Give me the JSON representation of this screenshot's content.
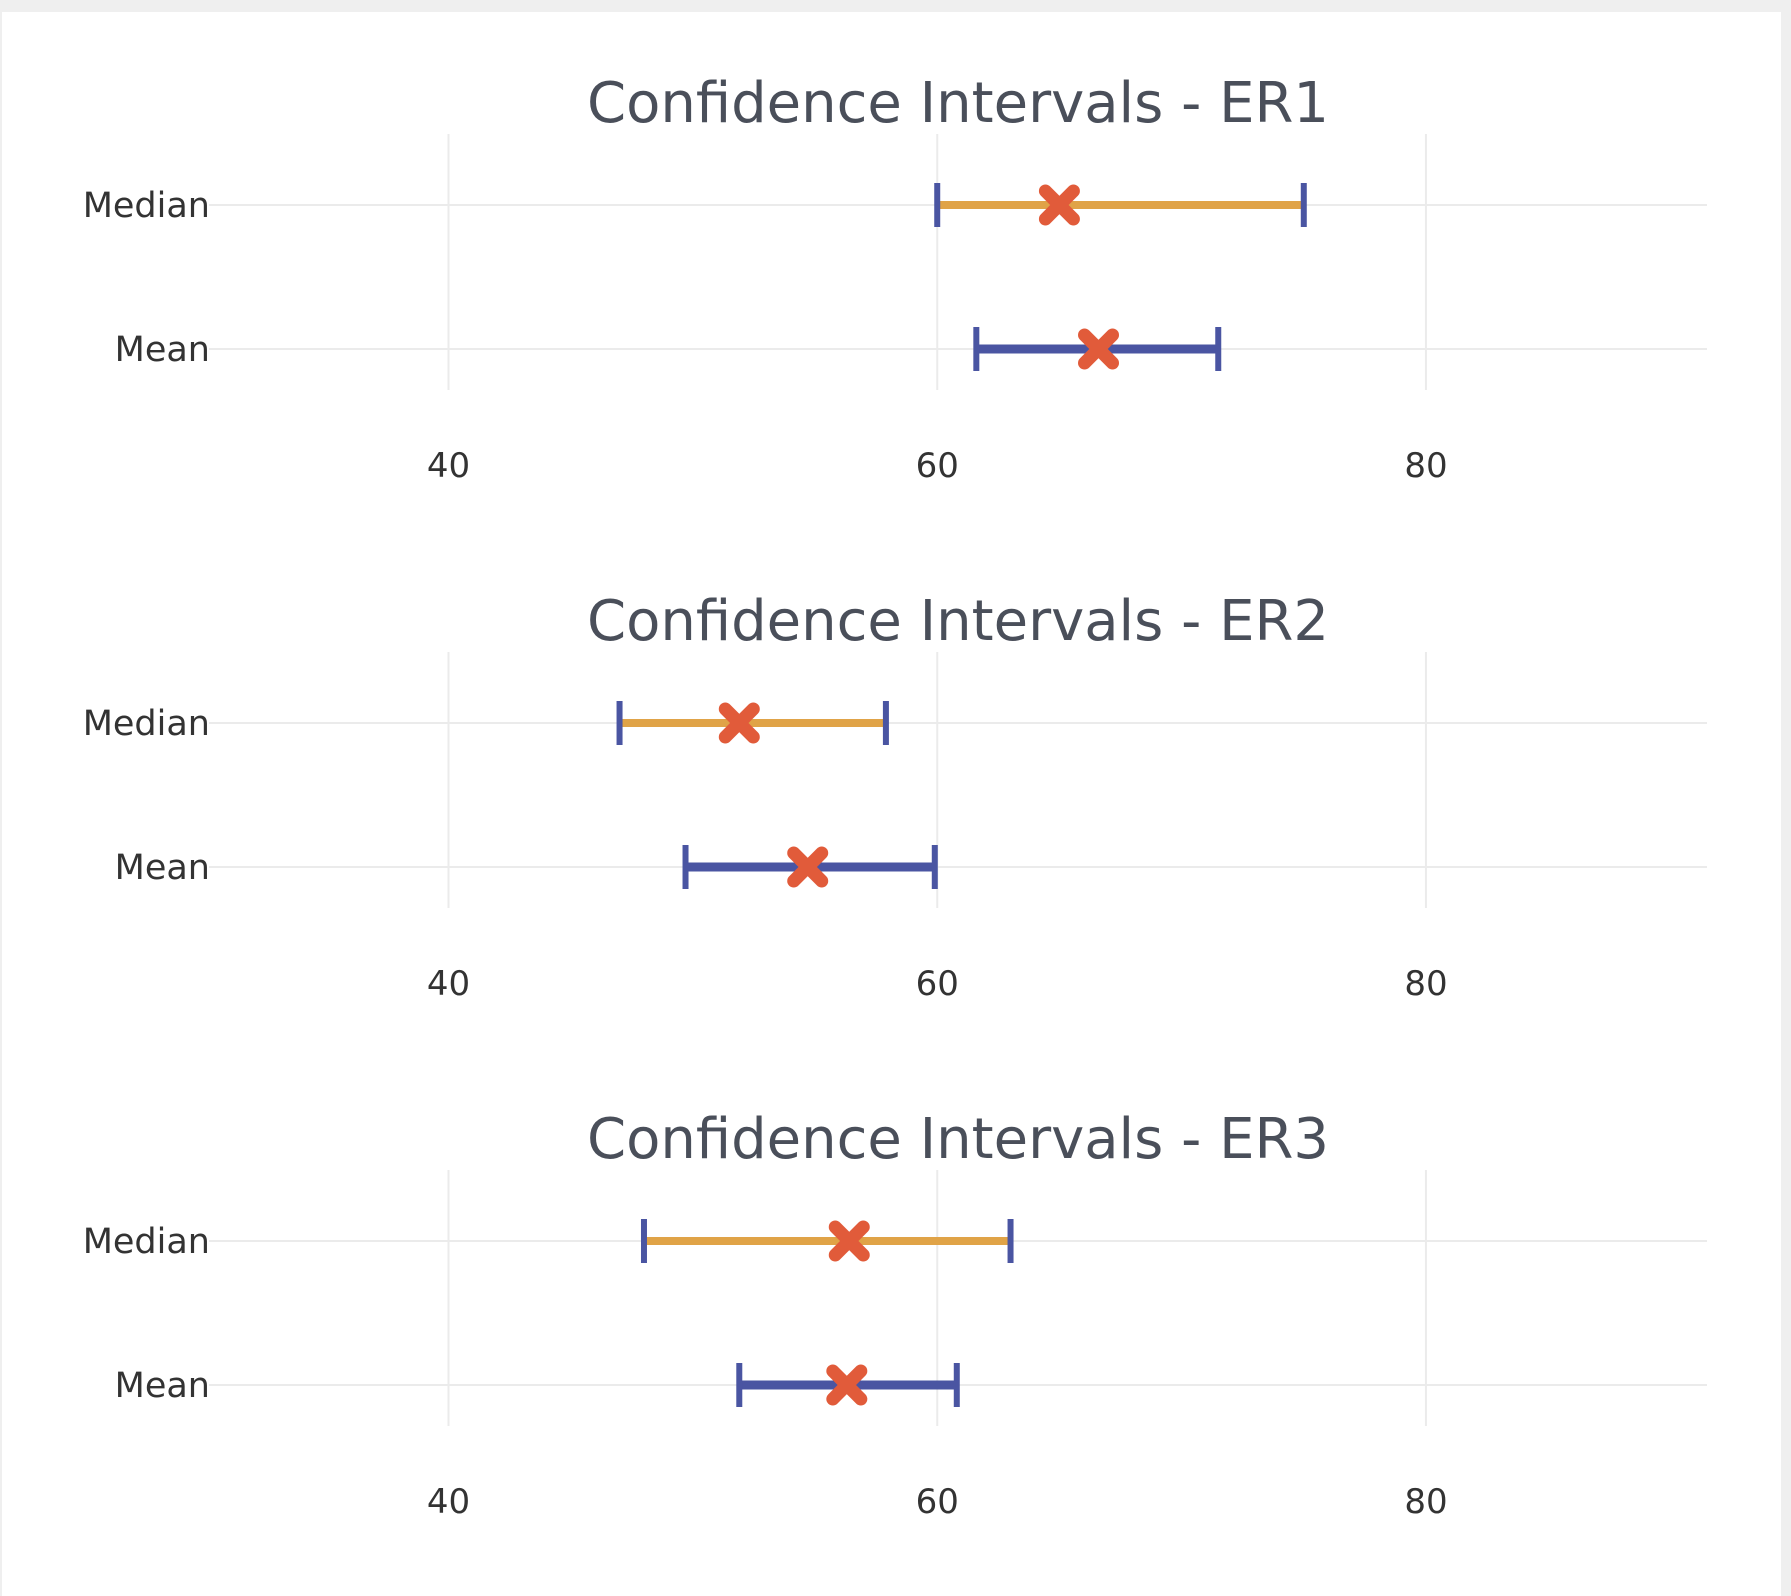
{
  "colors": {
    "median_line": "#e0a347",
    "mean_line": "#4a55a2",
    "cap": "#4a55a2",
    "marker": "#e15b3a",
    "grid": "#ebebeb"
  },
  "chart_data": [
    {
      "type": "errorbar",
      "title": "Confidence Intervals - ER1",
      "xlim": [
        30.2,
        91.5
      ],
      "xticks": [
        40,
        60,
        80
      ],
      "xtick_labels": [
        "40",
        "60",
        "80"
      ],
      "categories": [
        "Median",
        "Mean"
      ],
      "series": [
        {
          "label": "Median",
          "low": 60.0,
          "estimate": 65.0,
          "high": 75.0
        },
        {
          "label": "Mean",
          "low": 61.6,
          "estimate": 66.6,
          "high": 71.5
        }
      ]
    },
    {
      "type": "errorbar",
      "title": "Confidence Intervals - ER2",
      "xlim": [
        30.2,
        91.5
      ],
      "xticks": [
        40,
        60,
        80
      ],
      "xtick_labels": [
        "40",
        "60",
        "80"
      ],
      "categories": [
        "Median",
        "Mean"
      ],
      "series": [
        {
          "label": "Median",
          "low": 47.0,
          "estimate": 51.9,
          "high": 57.9
        },
        {
          "label": "Mean",
          "low": 49.7,
          "estimate": 54.7,
          "high": 59.9
        }
      ]
    },
    {
      "type": "errorbar",
      "title": "Confidence Intervals - ER3",
      "xlim": [
        30.2,
        91.5
      ],
      "xticks": [
        40,
        60,
        80
      ],
      "xtick_labels": [
        "40",
        "60",
        "80"
      ],
      "categories": [
        "Median",
        "Mean"
      ],
      "series": [
        {
          "label": "Median",
          "low": 48.0,
          "estimate": 56.4,
          "high": 63.0
        },
        {
          "label": "Mean",
          "low": 51.9,
          "estimate": 56.3,
          "high": 60.8
        }
      ]
    }
  ]
}
